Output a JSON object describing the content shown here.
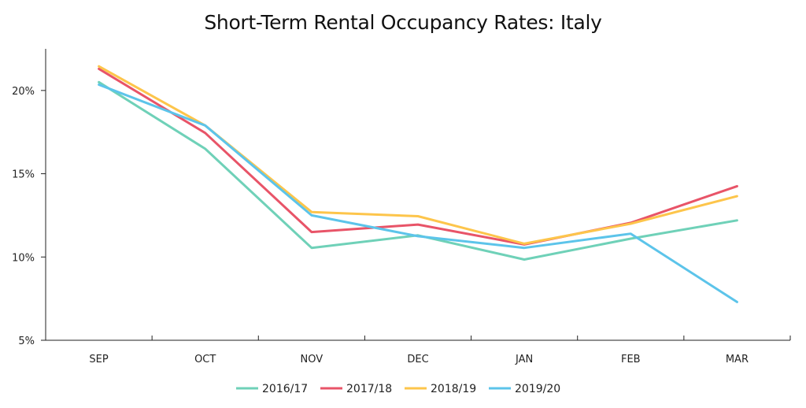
{
  "chart_data": {
    "type": "line",
    "title": "Short-Term Rental Occupancy Rates: Italy",
    "xlabel": "",
    "ylabel": "",
    "categories": [
      "SEP",
      "OCT",
      "NOV",
      "DEC",
      "JAN",
      "FEB",
      "MAR"
    ],
    "ylim": [
      5,
      22.5
    ],
    "yticks": [
      5,
      10,
      15,
      20
    ],
    "ytick_labels": [
      "5%",
      "10%",
      "15%",
      "20%"
    ],
    "grid": false,
    "legend_position": "bottom",
    "series": [
      {
        "name": "2016/17",
        "color": "#6fd1b8",
        "values": [
          20.5,
          16.5,
          10.55,
          11.3,
          9.85,
          11.1,
          12.2
        ]
      },
      {
        "name": "2017/18",
        "color": "#e85468",
        "values": [
          21.3,
          17.45,
          11.5,
          11.95,
          10.75,
          12.05,
          14.25
        ]
      },
      {
        "name": "2018/19",
        "color": "#fdc54b",
        "values": [
          21.45,
          17.9,
          12.7,
          12.45,
          10.8,
          12.0,
          13.65
        ]
      },
      {
        "name": "2019/20",
        "color": "#5cc4ea",
        "values": [
          20.35,
          17.9,
          12.5,
          11.25,
          10.55,
          11.4,
          7.3
        ]
      }
    ]
  }
}
